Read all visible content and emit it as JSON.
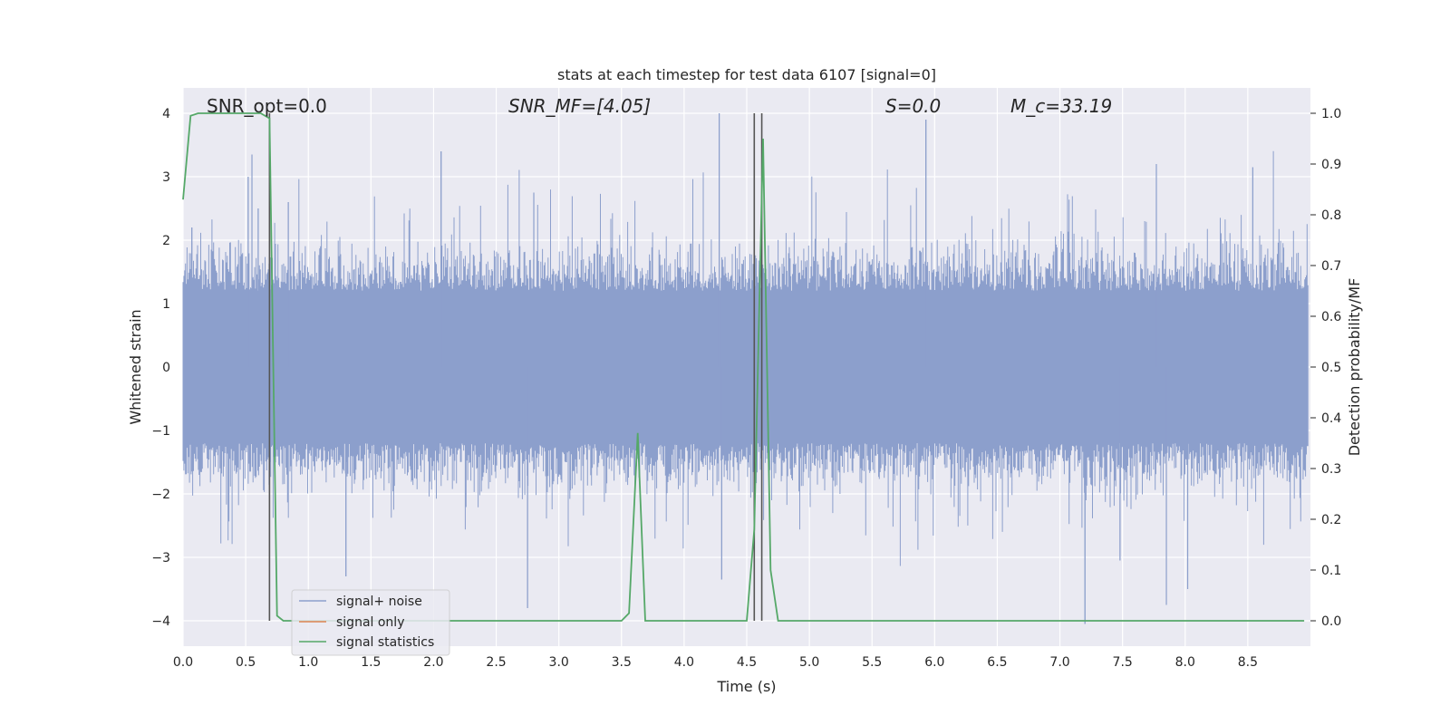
{
  "chart_data": {
    "type": "line",
    "title": "stats at each timestep for test data 6107 [signal=0]",
    "xlabel": "Time (s)",
    "ylabel": "Whitened strain",
    "y2label": "Detection probability/MF",
    "xlim": [
      0.0,
      9.0
    ],
    "ylim": [
      -4.4,
      4.4
    ],
    "y2lim": [
      -0.05,
      1.05
    ],
    "xticks": [
      "0.0",
      "0.5",
      "1.0",
      "1.5",
      "2.0",
      "2.5",
      "3.0",
      "3.5",
      "4.0",
      "4.5",
      "5.0",
      "5.5",
      "6.0",
      "6.5",
      "7.0",
      "7.5",
      "8.0",
      "8.5"
    ],
    "yticks": [
      "4",
      "3",
      "2",
      "1",
      "0",
      "−1",
      "−2",
      "−3",
      "−4"
    ],
    "y2ticks": [
      "1.0",
      "0.9",
      "0.8",
      "0.7",
      "0.6",
      "0.5",
      "0.4",
      "0.3",
      "0.2",
      "0.1",
      "0.0"
    ],
    "grid": true,
    "legend_position": "lower-left",
    "annotations": {
      "snr_opt": "SNR_opt=0.0",
      "snr_mf": "SNR_MF=[4.05]",
      "s": "S=0.0",
      "mc": "M_c=33.19"
    },
    "vertical_lines_x": [
      0.69,
      4.56,
      4.62
    ],
    "series": [
      {
        "name": "signal+ noise",
        "color": "#8c9fcc",
        "style": "noise",
        "peaks": [
          {
            "x": 0.07,
            "y": 2.2
          },
          {
            "x": 0.52,
            "y": 3.0
          },
          {
            "x": 0.55,
            "y": 3.35
          },
          {
            "x": 0.6,
            "y": 2.5
          },
          {
            "x": 0.84,
            "y": 2.6
          },
          {
            "x": 2.06,
            "y": 3.4
          },
          {
            "x": 2.8,
            "y": 2.75
          },
          {
            "x": 4.28,
            "y": 4.0
          },
          {
            "x": 5.93,
            "y": 3.9
          },
          {
            "x": 7.77,
            "y": 3.2
          },
          {
            "x": 8.54,
            "y": 3.15
          },
          {
            "x": 2.75,
            "y": -3.8
          },
          {
            "x": 1.3,
            "y": -3.3
          },
          {
            "x": 4.3,
            "y": -3.35
          },
          {
            "x": 7.2,
            "y": -4.05
          },
          {
            "x": 8.02,
            "y": -3.5
          },
          {
            "x": 7.85,
            "y": -3.75
          },
          {
            "x": 7.48,
            "y": -3.05
          }
        ]
      },
      {
        "name": "signal only",
        "color": "#dd8452",
        "points": []
      },
      {
        "name": "signal statistics",
        "color": "#55a868",
        "axis": "right",
        "x": [
          0.0,
          0.06,
          0.12,
          0.2,
          0.3,
          0.5,
          0.62,
          0.69,
          0.75,
          0.8,
          0.85,
          1.0,
          2.0,
          3.0,
          3.5,
          3.56,
          3.63,
          3.69,
          3.75,
          4.0,
          4.5,
          4.56,
          4.63,
          4.69,
          4.75,
          4.9,
          5.0,
          6.0,
          7.0,
          8.0,
          8.95
        ],
        "values": [
          0.83,
          0.995,
          1.0,
          1.0,
          1.0,
          1.0,
          1.0,
          0.99,
          0.01,
          0.0,
          0.0,
          0.0,
          0.0,
          0.0,
          0.0,
          0.015,
          0.37,
          0.0,
          0.0,
          0.0,
          0.0,
          0.18,
          0.95,
          0.1,
          0.0,
          0.0,
          0.0,
          0.0,
          0.0,
          0.0,
          0.0
        ]
      }
    ]
  }
}
